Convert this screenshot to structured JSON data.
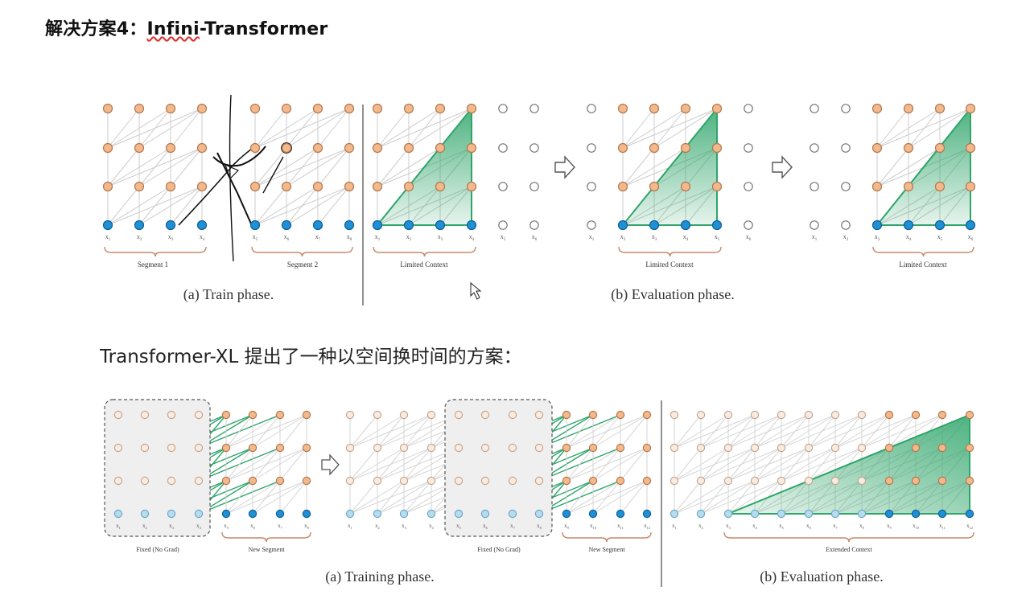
{
  "slide": {
    "title_prefix": "解决方案4：",
    "title_main": "Infini",
    "title_rest": "-Transformer",
    "subtitle": "Transformer-XL 提出了一种以空间换时间的方案："
  },
  "top_figure": {
    "segment_labels": [
      "Segment 1",
      "Segment 2"
    ],
    "limited_context": "Limited Context",
    "captions": [
      "(a) Train phase.",
      "(b) Evaluation phase."
    ],
    "tokens_seg1": [
      "x1",
      "x2",
      "x3",
      "x4"
    ],
    "tokens_seg2": [
      "x5",
      "x6",
      "x7",
      "x8"
    ],
    "tokens_eval1": [
      "x1",
      "x2",
      "x3",
      "x4",
      "x5",
      "x6"
    ],
    "tokens_eval2": [
      "x1",
      "x2",
      "x3",
      "x4",
      "x5",
      "x6"
    ],
    "tokens_eval3": [
      "x1",
      "x2",
      "x3",
      "x4",
      "x5",
      "x6"
    ]
  },
  "bottom_figure": {
    "fixed_label": "Fixed (No Grad)",
    "new_segment": "New Segment",
    "extended_context": "Extended Context",
    "captions": [
      "(a) Training phase.",
      "(b) Evaluation phase."
    ],
    "tokens_a1": [
      "x1",
      "x2",
      "x3",
      "x4",
      "x5",
      "x6",
      "x7",
      "x8"
    ],
    "tokens_a2": [
      "x1",
      "x2",
      "x3",
      "x4",
      "x5",
      "x6",
      "x7",
      "x8",
      "x9",
      "x10",
      "x11",
      "x12"
    ],
    "tokens_b": [
      "x1",
      "x2",
      "x3",
      "x4",
      "x5",
      "x6",
      "x7",
      "x8",
      "x9",
      "x10",
      "x11",
      "x12"
    ]
  },
  "colors": {
    "orange": "#f2b98e",
    "orange_stroke": "#b5774a",
    "blue": "#1f8fd6",
    "light_blue": "#b7dcee",
    "green": "#2fa56a",
    "line": "#cccccc"
  }
}
